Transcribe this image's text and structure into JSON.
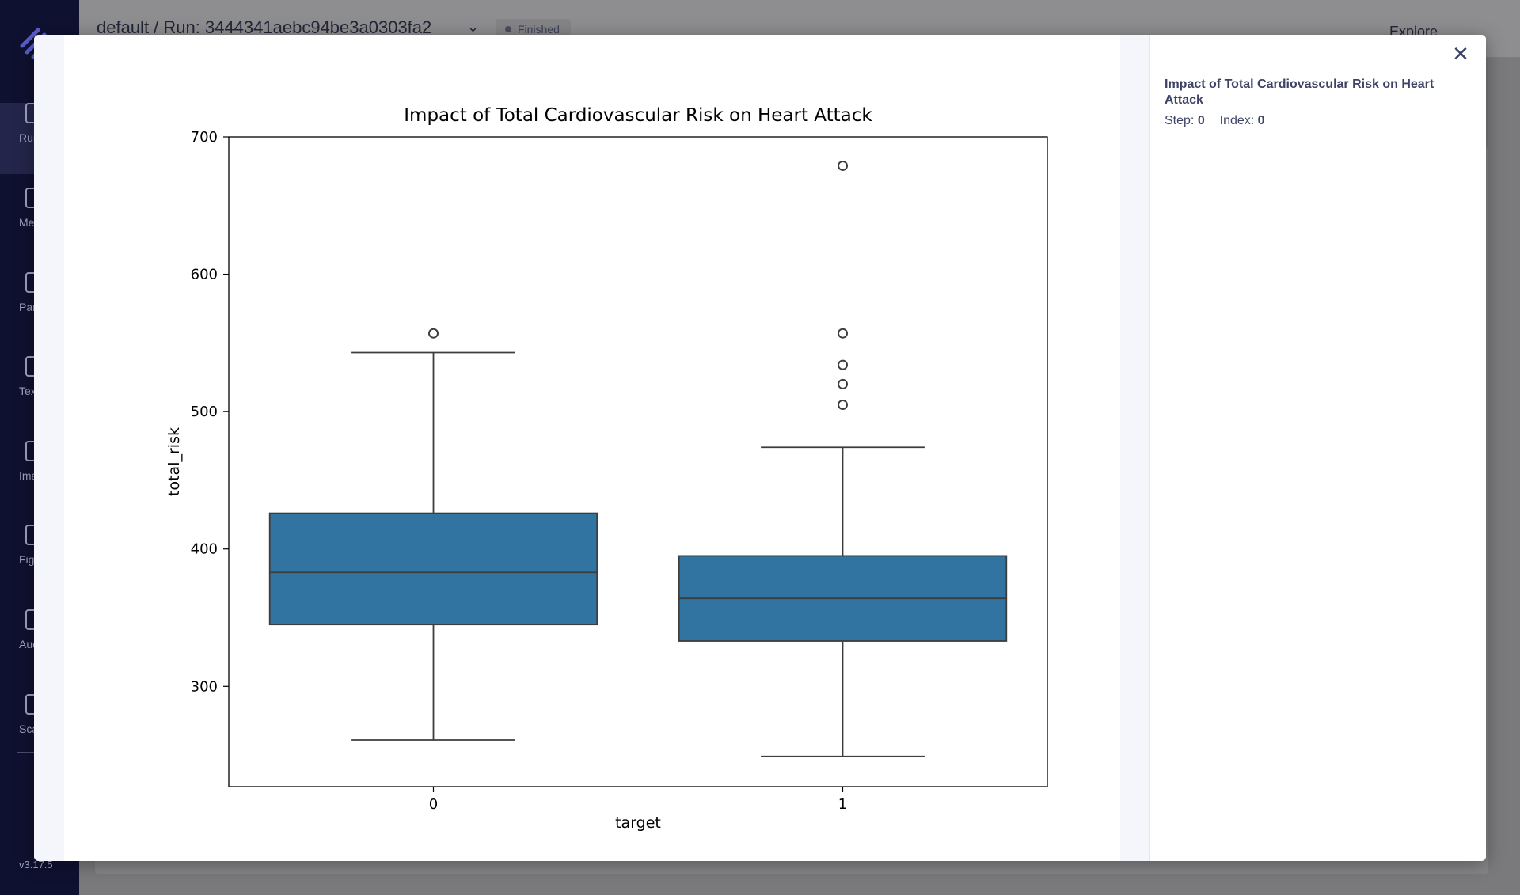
{
  "app": {
    "breadcrumb": "default  / Run: 3444341aebc94be3a0303fa2",
    "status": "Finished",
    "explore_label": "Explore",
    "version": "v3.17.5",
    "sidebar_items": [
      {
        "label": "Runs",
        "icon": "runs-icon"
      },
      {
        "label": "Metrics",
        "icon": "metrics-icon"
      },
      {
        "label": "Params",
        "icon": "params-icon"
      },
      {
        "label": "Text",
        "icon": "text-icon"
      },
      {
        "label": "Images",
        "icon": "images-icon"
      },
      {
        "label": "Figures",
        "icon": "figures-icon"
      },
      {
        "label": "Audios",
        "icon": "audios-icon"
      },
      {
        "label": "Scatters",
        "icon": "scatters-icon"
      }
    ]
  },
  "modal": {
    "panel_title": "Impact of Total Cardiovascular Risk on Heart Attack",
    "step_label": "Step:",
    "step_value": "0",
    "index_label": "Index:",
    "index_value": "0",
    "close_icon": "close-icon"
  },
  "chart_data": {
    "type": "box",
    "title": "Impact of Total Cardiovascular Risk on Heart Attack",
    "xlabel": "target",
    "ylabel": "total_risk",
    "ylim": [
      227,
      700
    ],
    "yticks": [
      300,
      400,
      500,
      600,
      700
    ],
    "categories": [
      "0",
      "1"
    ],
    "color": "#3274a1",
    "boxes": [
      {
        "category": "0",
        "whisker_low": 261,
        "q1": 345,
        "median": 383,
        "q3": 426,
        "whisker_high": 543,
        "outliers": [
          557
        ]
      },
      {
        "category": "1",
        "whisker_low": 249,
        "q1": 333,
        "median": 364,
        "q3": 395,
        "whisker_high": 474,
        "outliers": [
          679,
          557,
          534,
          520,
          505
        ]
      }
    ],
    "grid": false
  }
}
